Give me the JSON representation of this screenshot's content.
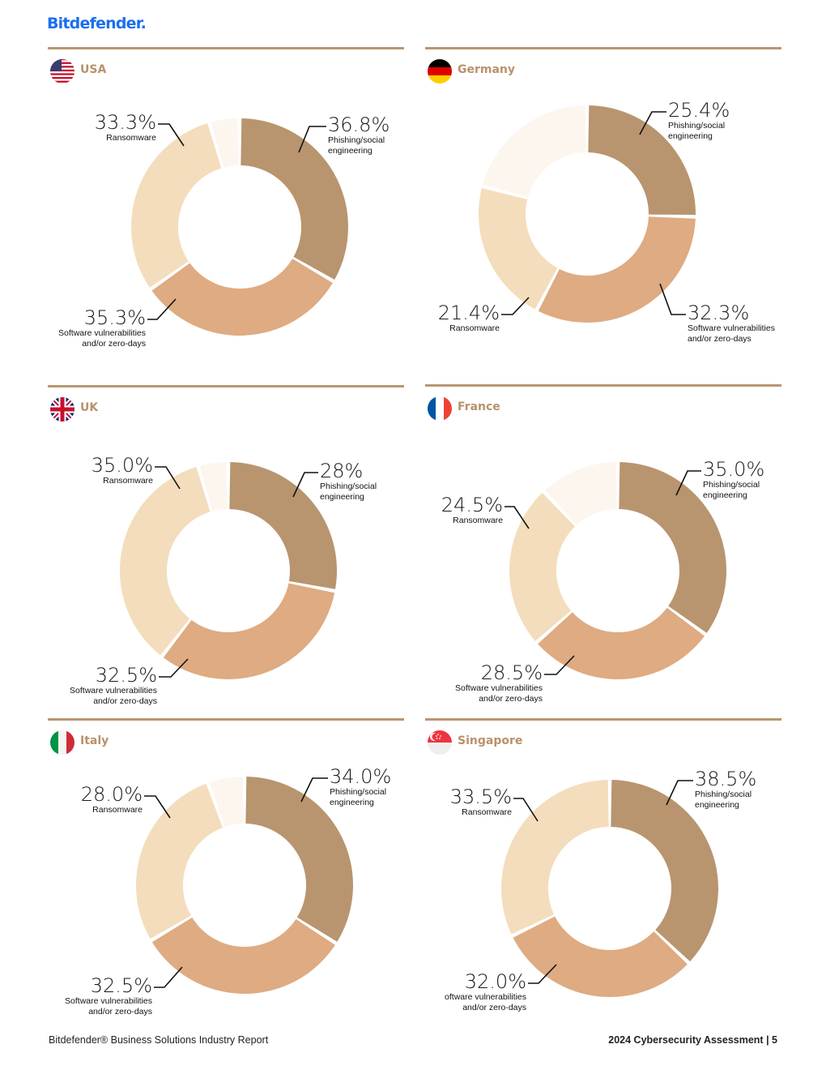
{
  "header": {
    "logo": "Bitdefender."
  },
  "footer": {
    "left": "Bitdefender® Business Solutions Industry Report",
    "right": "2024 Cybersecurity Assessment  |  5"
  },
  "colors": {
    "phishing": "#b8956f",
    "software": "#deab82",
    "ransomware": "#f4ddbc",
    "other": "#fdf6ef",
    "rule": "#b89671",
    "country_text": "#b8926b"
  },
  "chart_data": [
    {
      "type": "pie",
      "country": "USA",
      "flag": "usa-flag-icon",
      "series": [
        {
          "name": "Phishing/social engineering",
          "value": 36.8,
          "label": "36.8%"
        },
        {
          "name": "Software vulnerabilities and/or zero-days",
          "value": 35.3,
          "label": "35.3%"
        },
        {
          "name": "Ransomware",
          "value": 33.3,
          "label": "33.3%"
        },
        {
          "value": 5.0
        }
      ]
    },
    {
      "type": "pie",
      "country": "Germany",
      "flag": "germany-flag-icon",
      "series": [
        {
          "name": "Phishing/social engineering",
          "value": 25.4,
          "label": "25.4%"
        },
        {
          "name": "Software vulnerabilities and/or zero-days",
          "value": 32.3,
          "label": "32.3%"
        },
        {
          "name": "Ransomware",
          "value": 21.4,
          "label": "21.4%"
        },
        {
          "value": 20.9
        }
      ]
    },
    {
      "type": "pie",
      "country": "UK",
      "flag": "uk-flag-icon",
      "series": [
        {
          "name": "Phishing/social engineering",
          "value": 28,
          "label": "28%"
        },
        {
          "name": "Software vulnerabilities and/or zero-days",
          "value": 32.5,
          "label": "32.5%"
        },
        {
          "name": "Ransomware",
          "value": 35.0,
          "label": "35.0%"
        },
        {
          "value": 4.5
        }
      ]
    },
    {
      "type": "pie",
      "country": "France",
      "flag": "france-flag-icon",
      "series": [
        {
          "name": "Phishing/social engineering",
          "value": 35.0,
          "label": "35.0%"
        },
        {
          "name": "Software vulnerabilities and/or zero-days",
          "value": 28.5,
          "label": "28.5%"
        },
        {
          "name": "Ransomware",
          "value": 24.5,
          "label": "24.5%"
        },
        {
          "value": 12.0
        }
      ]
    },
    {
      "type": "pie",
      "country": "Italy",
      "flag": "italy-flag-icon",
      "series": [
        {
          "name": "Phishing/social engineering",
          "value": 34.0,
          "label": "34.0%"
        },
        {
          "name": "Software vulnerabilities and/or zero-days",
          "value": 32.5,
          "label": "32.5%"
        },
        {
          "name": "Ransomware",
          "value": 28.0,
          "label": "28.0%"
        },
        {
          "value": 5.5
        }
      ]
    },
    {
      "type": "pie",
      "country": "Singapore",
      "flag": "singapore-flag-icon",
      "series": [
        {
          "name": "Phishing/social engineering",
          "value": 38.5,
          "label": "38.5%"
        },
        {
          "name": "oftware vulnerabilities and/or zero-days",
          "value": 32.0,
          "label": "32.0%"
        },
        {
          "name": "Ransomware",
          "value": 33.5,
          "label": "33.5%"
        }
      ]
    }
  ],
  "labels": {
    "phishing": [
      "Phishing/social",
      "engineering"
    ],
    "software": [
      "Software vulnerabilities",
      "and/or zero-days"
    ],
    "software_sg": [
      "oftware vulnerabilities",
      "and/or zero-days"
    ],
    "ransomware": [
      "Ransomware"
    ]
  }
}
